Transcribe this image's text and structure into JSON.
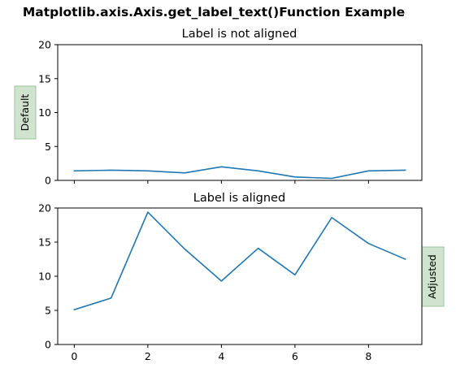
{
  "figure": {
    "suptitle": "Matplotlib.axis.Axis.get_label_text()Function Example"
  },
  "colors": {
    "line": "#1f77b4",
    "label_box_fill": "#cfe3cf",
    "label_box_edge": "#9cc39c"
  },
  "chart_data": [
    {
      "type": "line",
      "title": "Label is not aligned",
      "ylabel": "Default",
      "ylabel_style": "boxed",
      "xlim": [
        -0.45,
        9.45
      ],
      "ylim": [
        0,
        20
      ],
      "xticks": [
        0,
        2,
        4,
        6,
        8
      ],
      "show_xtick_labels": false,
      "yticks": [
        0,
        5,
        10,
        15,
        20
      ],
      "grid": false,
      "x": [
        0,
        1,
        2,
        3,
        4,
        5,
        6,
        7,
        8,
        9
      ],
      "series": [
        {
          "values": [
            1.4,
            1.5,
            1.4,
            1.1,
            2.0,
            1.4,
            0.5,
            0.3,
            1.4,
            1.5
          ]
        }
      ]
    },
    {
      "type": "line",
      "title": "Label is aligned",
      "ylabel": "Adjusted",
      "ylabel_style": "boxed",
      "ylabel_position": "right",
      "xlim": [
        -0.45,
        9.45
      ],
      "ylim": [
        0,
        20
      ],
      "xticks": [
        0,
        2,
        4,
        6,
        8
      ],
      "show_xtick_labels": true,
      "yticks": [
        0,
        5,
        10,
        15,
        20
      ],
      "grid": false,
      "x": [
        0,
        1,
        2,
        3,
        4,
        5,
        6,
        7,
        8,
        9
      ],
      "series": [
        {
          "values": [
            5.1,
            6.8,
            19.4,
            14.0,
            9.3,
            14.1,
            10.2,
            18.6,
            14.8,
            12.5
          ]
        }
      ]
    }
  ]
}
